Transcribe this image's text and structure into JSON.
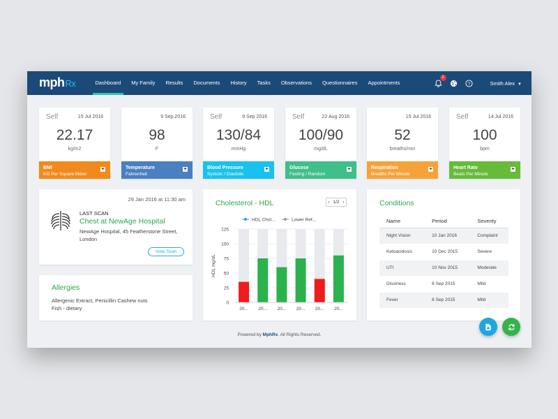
{
  "brand": {
    "name": "mph",
    "suffix": "Rx"
  },
  "nav": {
    "links": [
      "Dashboard",
      "My Family",
      "Results",
      "Documents",
      "History",
      "Tasks",
      "Observations",
      "Questionnaires",
      "Appointments"
    ],
    "notifications_count": "2",
    "user": "Smith Alex"
  },
  "vitals": [
    {
      "self": "Self",
      "date": "15 Jul 2016",
      "value": "22.17",
      "unit": "kg/m2",
      "title": "BMI",
      "subtitle": "KG Per Square Meter",
      "color": "#f08a1c"
    },
    {
      "self": "",
      "date": "9 Sep 2016",
      "value": "98",
      "unit": "F",
      "title": "Temperature",
      "subtitle": "Fahrenheit",
      "color": "#4a7fc1"
    },
    {
      "self": "Self",
      "date": "9 Sep 2016",
      "value": "130/84",
      "unit": "mmHg",
      "title": "Blood Pressure",
      "subtitle": "Systolic / Diastolic",
      "color": "#18c2ee"
    },
    {
      "self": "Self",
      "date": "22 Aug 2016",
      "value": "100/90",
      "unit": "mg/dL",
      "title": "Glucose",
      "subtitle": "Fasting / Random",
      "color": "#3fbf8a"
    },
    {
      "self": "",
      "date": "15 Jul 2016",
      "value": "52",
      "unit": "breaths/min",
      "title": "Respiration",
      "subtitle": "Breaths Per Minute",
      "color": "#f6a23a"
    },
    {
      "self": "Self",
      "date": "14 Jul 2016",
      "value": "100",
      "unit": "bpm",
      "title": "Heart Rate",
      "subtitle": "Beats Per Minute",
      "color": "#66bb3a"
    }
  ],
  "scan": {
    "date": "29 Jan 2016 at 11:30 am",
    "label": "LAST SCAN",
    "title": "Chest at NewAge Hospital",
    "address": "NewAge Hospital, 45 Featherstone Street, London",
    "button": "View Scan"
  },
  "allergies": {
    "title": "Allergies",
    "line1": "Allergenic Extract, Penicillin Cashew nuts",
    "line2": "Fish - dietary"
  },
  "cholesterol": {
    "title": "Cholesterol - HDL",
    "pager": "1/2"
  },
  "chart_data": {
    "type": "bar",
    "title": "Cholesterol - HDL",
    "ylabel": "HDL mg/dL",
    "xlabel": "",
    "ylim": [
      0,
      125
    ],
    "yticks": [
      0,
      25,
      50,
      75,
      100,
      125
    ],
    "categories": [
      "20...",
      "20...",
      "20...",
      "20...",
      "20...",
      "20..."
    ],
    "legend": [
      "HDL Chol...",
      "Lower Ref..."
    ],
    "series": [
      {
        "name": "HDL Chol...",
        "values": [
          35,
          75,
          60,
          75,
          40,
          80
        ],
        "colors": [
          "#ef1c1c",
          "#2bb24c",
          "#2bb24c",
          "#2bb24c",
          "#ef1c1c",
          "#2bb24c"
        ]
      }
    ],
    "reference_background_color": "#e8eaed",
    "grid": true
  },
  "conditions": {
    "title": "Conditions",
    "headers": [
      "Name",
      "Period",
      "Severity"
    ],
    "rows": [
      [
        "Night Vision",
        "10 Jan 2016",
        "Complaint"
      ],
      [
        "Ketoacidosis",
        "10 Dec 2015",
        "Severe"
      ],
      [
        "UTI",
        "10 Nov 2015",
        "Moderate"
      ],
      [
        "Dissiness",
        "6 Sep 2015",
        "Mild"
      ],
      [
        "Fever",
        "6 Sep 2015",
        "Mild"
      ]
    ]
  },
  "footer": {
    "text": "Powered by",
    "brand": "MphRx",
    "rights": ". All Rights Reserved."
  },
  "colors": {
    "nav": "#1b4a78",
    "accent_green": "#2ba84a",
    "fab_blue": "#1fa6e0",
    "fab_green": "#35b34a"
  }
}
